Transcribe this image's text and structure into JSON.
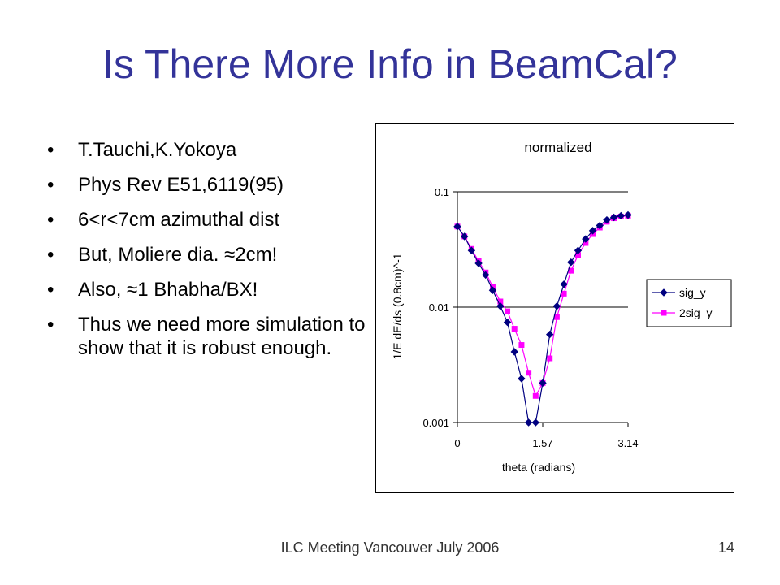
{
  "slide": {
    "title": "Is There More Info in BeamCal?",
    "bullets": [
      {
        "marker": "•",
        "text": "T.Tauchi,K.Yokoya"
      },
      {
        "marker": "•",
        "text": "Phys Rev E51,6119(95)"
      },
      {
        "marker": "•",
        "text": "6<r<7cm azimuthal dist"
      },
      {
        "marker": "•",
        "text": "But, Moliere dia. ≈2cm!"
      },
      {
        "marker": "•",
        "text": "Also, ≈1 Bhabha/BX!"
      },
      {
        "marker": "•",
        "text": "Thus we need more simulation to show that it is robust enough."
      }
    ],
    "footer": "ILC Meeting Vancouver July 2006",
    "page_number": "14"
  },
  "chart_data": {
    "type": "line",
    "title": "normalized",
    "xlabel": "theta (radians)",
    "ylabel": "1/E dE/ds (0.8cm)^-1",
    "x_ticks": [
      "0",
      "1.57",
      "3.14"
    ],
    "y_ticks": [
      "0.001",
      "0.01",
      "0.1"
    ],
    "xlim": [
      0,
      3.14
    ],
    "ylim": [
      0.001,
      0.1
    ],
    "y_scale": "log",
    "grid": "horizontal major lines",
    "legend_position": "right",
    "x": [
      0.0,
      0.13,
      0.26,
      0.39,
      0.52,
      0.65,
      0.79,
      0.92,
      1.05,
      1.18,
      1.31,
      1.44,
      1.57,
      1.7,
      1.83,
      1.96,
      2.09,
      2.22,
      2.36,
      2.49,
      2.62,
      2.75,
      2.88,
      3.01,
      3.14
    ],
    "series": [
      {
        "name": "sig_y",
        "color": "#000080",
        "marker": "diamond",
        "values": [
          0.05,
          0.041,
          0.031,
          0.024,
          0.019,
          0.014,
          0.0102,
          0.0074,
          0.0041,
          0.0024,
          0.001,
          0.001,
          0.0022,
          0.0058,
          0.0102,
          0.0158,
          0.0245,
          0.031,
          0.039,
          0.046,
          0.051,
          0.057,
          0.06,
          0.062,
          0.063
        ]
      },
      {
        "name": "2sig_y",
        "color": "#ff00ff",
        "marker": "square",
        "values": [
          0.05,
          0.041,
          0.032,
          0.025,
          0.02,
          0.015,
          0.0112,
          0.0092,
          0.0065,
          0.0047,
          0.0027,
          0.0017,
          0.0022,
          0.0036,
          0.0082,
          0.0131,
          0.0207,
          0.0283,
          0.036,
          0.043,
          0.049,
          0.055,
          0.059,
          0.061,
          0.062
        ]
      }
    ]
  }
}
